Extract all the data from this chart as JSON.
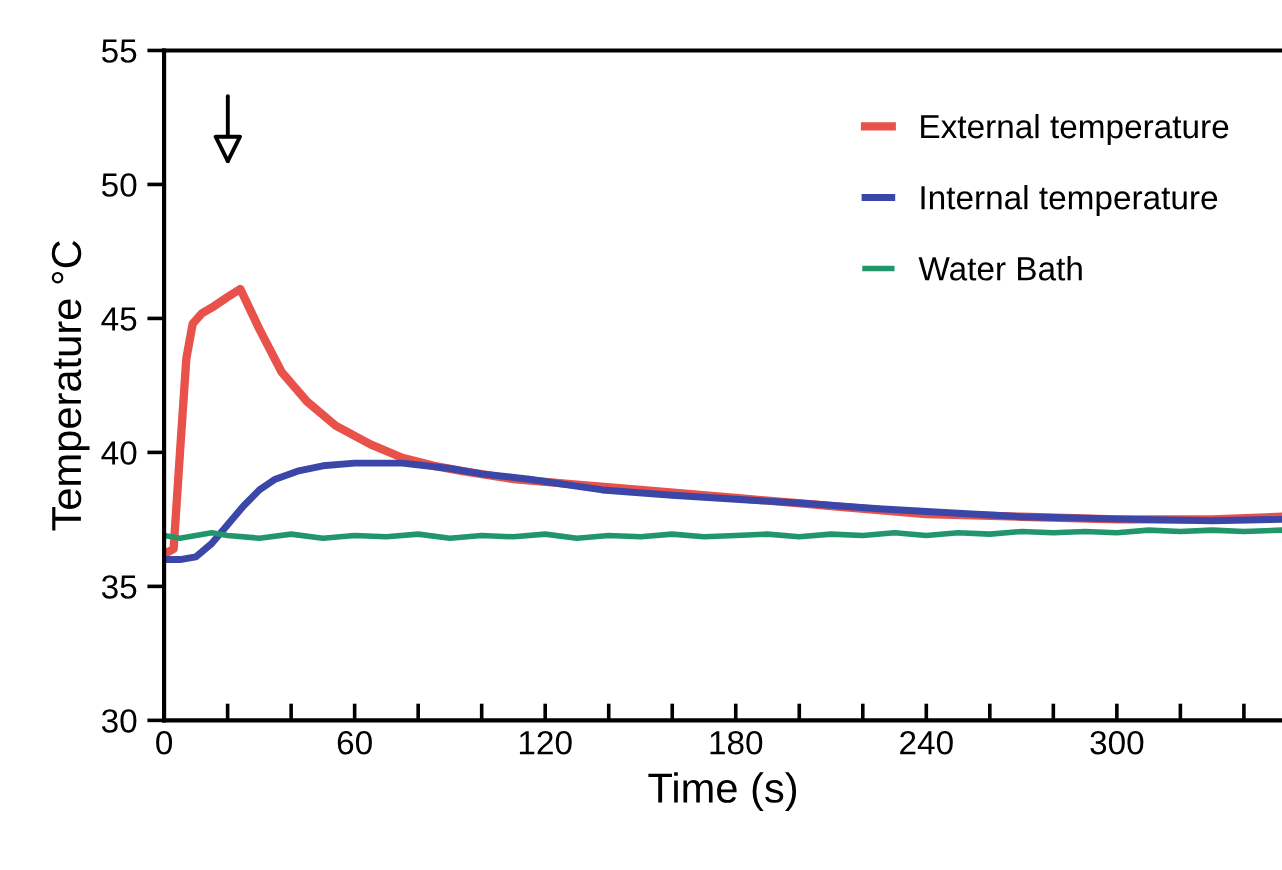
{
  "chart_data": {
    "type": "line",
    "xlabel": "Time (s)",
    "ylabel": "Temperature °C",
    "xlim": [
      0,
      352
    ],
    "ylim": [
      30,
      55
    ],
    "xticks": [
      0,
      {
        "value": 20,
        "label": null
      },
      {
        "value": 40,
        "label": null
      },
      60,
      {
        "value": 80,
        "label": null
      },
      {
        "value": 100,
        "label": null
      },
      120,
      {
        "value": 140,
        "label": null
      },
      {
        "value": 160,
        "label": null
      },
      180,
      {
        "value": 200,
        "label": null
      },
      {
        "value": 220,
        "label": null
      },
      240,
      {
        "value": 260,
        "label": null
      },
      {
        "value": 280,
        "label": null
      },
      300,
      {
        "value": 320,
        "label": null
      },
      {
        "value": 340,
        "label": null
      }
    ],
    "yticks": [
      30,
      35,
      40,
      45,
      50,
      55
    ],
    "grid": false,
    "legend": "top right",
    "marker": "none",
    "line_style": "solid",
    "series": [
      {
        "name": "External temperature",
        "color": "#e8524a",
        "x": [
          0,
          3,
          5,
          7,
          9,
          12,
          15,
          20,
          24,
          30,
          37,
          45,
          54,
          65,
          75,
          85,
          94,
          110,
          130,
          150,
          180,
          210,
          240,
          270,
          300,
          330,
          352
        ],
        "values": [
          36.2,
          36.4,
          40,
          43.5,
          44.8,
          45.2,
          45.4,
          45.8,
          46.1,
          44.6,
          43.0,
          41.9,
          41.0,
          40.3,
          39.8,
          39.5,
          39.3,
          39.0,
          38.8,
          38.6,
          38.3,
          38.0,
          37.7,
          37.6,
          37.5,
          37.5,
          37.6
        ]
      },
      {
        "name": "Internal temperature",
        "color": "#3a46a8",
        "x": [
          0,
          5,
          10,
          15,
          20,
          25,
          30,
          35,
          42,
          50,
          60,
          75,
          90,
          100,
          115,
          138,
          160,
          180,
          201,
          225,
          247,
          270,
          306,
          330,
          352
        ],
        "values": [
          36.0,
          36.0,
          36.1,
          36.6,
          37.3,
          38.0,
          38.6,
          39.0,
          39.3,
          39.5,
          39.6,
          39.6,
          39.4,
          39.2,
          39.0,
          38.6,
          38.4,
          38.25,
          38.1,
          37.9,
          37.75,
          37.6,
          37.5,
          37.45,
          37.5
        ]
      },
      {
        "name": "Water Bath",
        "color": "#21966b",
        "x": [
          0,
          5,
          10,
          15,
          20,
          30,
          40,
          50,
          60,
          70,
          80,
          90,
          100,
          110,
          120,
          130,
          140,
          150,
          160,
          170,
          180,
          190,
          200,
          210,
          220,
          230,
          240,
          250,
          260,
          270,
          280,
          290,
          300,
          310,
          320,
          330,
          340,
          352
        ],
        "values": [
          36.9,
          36.8,
          36.9,
          37.0,
          36.9,
          36.8,
          36.95,
          36.8,
          36.9,
          36.85,
          36.95,
          36.8,
          36.9,
          36.85,
          36.95,
          36.8,
          36.9,
          36.85,
          36.95,
          36.85,
          36.9,
          36.95,
          36.85,
          36.95,
          36.9,
          37.0,
          36.9,
          37.0,
          36.95,
          37.05,
          37.0,
          37.05,
          37.0,
          37.1,
          37.05,
          37.1,
          37.05,
          37.1
        ]
      }
    ]
  }
}
